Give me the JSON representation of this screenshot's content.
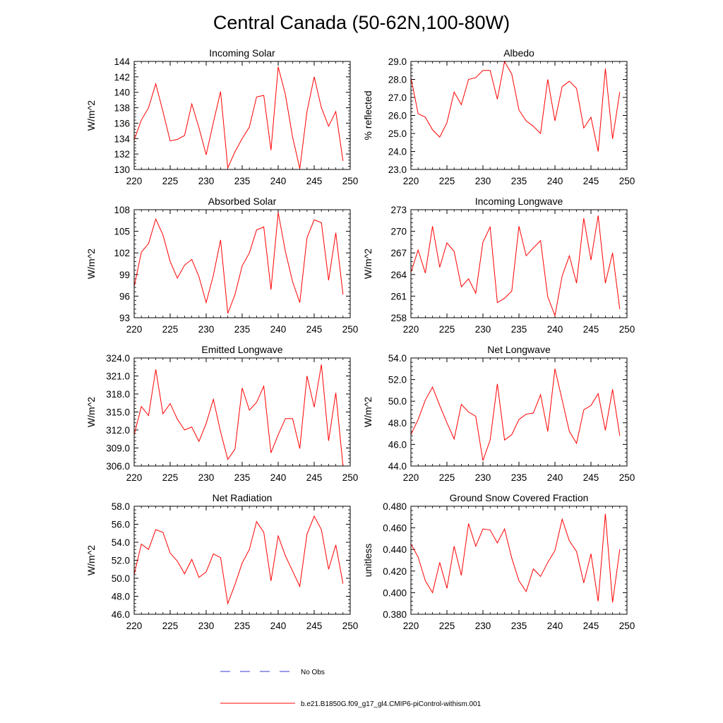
{
  "title": "Central Canada (50-62N,100-80W)",
  "colors": {
    "model_line": "#ff0000",
    "obs_line": "#3a3ad6",
    "axis": "#000000"
  },
  "legend": {
    "obs_label": "No Obs",
    "model_label": "b.e21.B1850G.f09_g17_gl4.CMIP6-piControl-withism.001"
  },
  "chart_data": [
    {
      "type": "line",
      "title": "Incoming Solar",
      "ylabel": "W/m^2",
      "xlabel": "",
      "xlim": [
        220,
        250
      ],
      "ylim": [
        130,
        144
      ],
      "xticks": [
        220,
        225,
        230,
        235,
        240,
        245,
        250
      ],
      "xtick_labels": [
        "220",
        "225",
        "230",
        "235",
        "240",
        "245",
        "250"
      ],
      "yticks": [
        130,
        132,
        134,
        136,
        138,
        140,
        142,
        144
      ],
      "ytick_labels": [
        "130",
        "132",
        "134",
        "136",
        "138",
        "140",
        "142",
        "144"
      ],
      "x": [
        220,
        221,
        222,
        223,
        224,
        225,
        226,
        227,
        228,
        229,
        230,
        231,
        232,
        233,
        234,
        235,
        236,
        237,
        238,
        239,
        240,
        241,
        242,
        243,
        244,
        245,
        246,
        247,
        248,
        249
      ],
      "series": [
        {
          "values": [
            133.8,
            136.4,
            138.0,
            141.1,
            137.5,
            133.7,
            133.9,
            134.4,
            138.5,
            135.4,
            131.9,
            136.1,
            140.1,
            130.2,
            132.3,
            134.0,
            135.5,
            139.4,
            139.6,
            132.5,
            143.3,
            139.7,
            134.2,
            130.1,
            137.5,
            142.0,
            138.0,
            135.6,
            137.5,
            131.1
          ]
        }
      ]
    },
    {
      "type": "line",
      "title": "Albedo",
      "ylabel": "% reflected",
      "xlabel": "",
      "xlim": [
        220,
        250
      ],
      "ylim": [
        23,
        29
      ],
      "xticks": [
        220,
        225,
        230,
        235,
        240,
        245,
        250
      ],
      "xtick_labels": [
        "220",
        "225",
        "230",
        "235",
        "240",
        "245",
        "250"
      ],
      "yticks": [
        23,
        24,
        25,
        26,
        27,
        28,
        29
      ],
      "ytick_labels": [
        "23.0",
        "24.0",
        "25.0",
        "26.0",
        "27.0",
        "28.0",
        "29.0"
      ],
      "x": [
        220,
        221,
        222,
        223,
        224,
        225,
        226,
        227,
        228,
        229,
        230,
        231,
        232,
        233,
        234,
        235,
        236,
        237,
        238,
        239,
        240,
        241,
        242,
        243,
        244,
        245,
        246,
        247,
        248,
        249
      ],
      "series": [
        {
          "values": [
            28.1,
            26.1,
            25.9,
            25.2,
            24.8,
            25.6,
            27.3,
            26.6,
            28.0,
            28.1,
            28.5,
            28.5,
            26.9,
            29.0,
            28.3,
            26.3,
            25.7,
            25.4,
            25.0,
            28.0,
            25.7,
            27.6,
            27.9,
            27.5,
            25.3,
            25.9,
            24.0,
            28.6,
            24.7,
            27.3
          ]
        }
      ]
    },
    {
      "type": "line",
      "title": "Absorbed Solar",
      "ylabel": "W/m^2",
      "xlabel": "",
      "xlim": [
        220,
        250
      ],
      "ylim": [
        93,
        108
      ],
      "xticks": [
        220,
        225,
        230,
        235,
        240,
        245,
        250
      ],
      "xtick_labels": [
        "220",
        "225",
        "230",
        "235",
        "240",
        "245",
        "250"
      ],
      "yticks": [
        93,
        96,
        99,
        102,
        105,
        108
      ],
      "ytick_labels": [
        "93",
        "96",
        "99",
        "102",
        "105",
        "108"
      ],
      "x": [
        220,
        221,
        222,
        223,
        224,
        225,
        226,
        227,
        228,
        229,
        230,
        231,
        232,
        233,
        234,
        235,
        236,
        237,
        238,
        239,
        240,
        241,
        242,
        243,
        244,
        245,
        246,
        247,
        248,
        249
      ],
      "series": [
        {
          "values": [
            97.3,
            102.1,
            103.3,
            106.7,
            104.5,
            100.8,
            98.5,
            100.3,
            101.1,
            98.7,
            95.1,
            98.9,
            103.8,
            93.6,
            96.2,
            100.2,
            102.0,
            105.2,
            105.6,
            96.9,
            107.6,
            102.2,
            98.0,
            95.1,
            104.1,
            106.6,
            106.2,
            98.2,
            104.8,
            96.2
          ]
        }
      ]
    },
    {
      "type": "line",
      "title": "Incoming Longwave",
      "ylabel": "W/m^2",
      "xlabel": "",
      "xlim": [
        220,
        250
      ],
      "ylim": [
        258,
        273
      ],
      "xticks": [
        220,
        225,
        230,
        235,
        240,
        245,
        250
      ],
      "xtick_labels": [
        "220",
        "225",
        "230",
        "235",
        "240",
        "245",
        "250"
      ],
      "yticks": [
        258,
        261,
        264,
        267,
        270,
        273
      ],
      "ytick_labels": [
        "258",
        "261",
        "264",
        "267",
        "270",
        "273"
      ],
      "x": [
        220,
        221,
        222,
        223,
        224,
        225,
        226,
        227,
        228,
        229,
        230,
        231,
        232,
        233,
        234,
        235,
        236,
        237,
        238,
        239,
        240,
        241,
        242,
        243,
        244,
        245,
        246,
        247,
        248,
        249
      ],
      "series": [
        {
          "values": [
            264.3,
            267.4,
            264.2,
            270.7,
            265.0,
            268.4,
            267.2,
            262.3,
            263.4,
            261.4,
            268.5,
            270.6,
            260.1,
            260.7,
            261.7,
            270.7,
            266.6,
            267.7,
            268.7,
            260.9,
            258.3,
            263.8,
            266.6,
            262.8,
            271.8,
            266.0,
            272.2,
            262.8,
            267.0,
            259.2
          ]
        }
      ]
    },
    {
      "type": "line",
      "title": "Emitted Longwave",
      "ylabel": "W/m^2",
      "xlabel": "",
      "xlim": [
        220,
        250
      ],
      "ylim": [
        306,
        324
      ],
      "xticks": [
        220,
        225,
        230,
        235,
        240,
        245,
        250
      ],
      "xtick_labels": [
        "220",
        "225",
        "230",
        "235",
        "240",
        "245",
        "250"
      ],
      "yticks": [
        306,
        309,
        312,
        315,
        318,
        321,
        324
      ],
      "ytick_labels": [
        "306.0",
        "309.0",
        "312.0",
        "315.0",
        "318.0",
        "321.0",
        "324.0"
      ],
      "x": [
        220,
        221,
        222,
        223,
        224,
        225,
        226,
        227,
        228,
        229,
        230,
        231,
        232,
        233,
        234,
        235,
        236,
        237,
        238,
        239,
        240,
        241,
        242,
        243,
        244,
        245,
        246,
        247,
        248,
        249
      ],
      "series": [
        {
          "values": [
            311.2,
            315.9,
            314.4,
            322.1,
            314.7,
            316.4,
            313.8,
            312.0,
            312.5,
            310.1,
            313.1,
            317.1,
            311.7,
            307.1,
            308.8,
            319.0,
            315.3,
            316.6,
            319.3,
            308.2,
            311.2,
            313.9,
            313.9,
            308.9,
            321.0,
            315.8,
            322.9,
            310.2,
            318.2,
            306.0
          ]
        }
      ]
    },
    {
      "type": "line",
      "title": "Net Longwave",
      "ylabel": "W/m^2",
      "xlabel": "",
      "xlim": [
        220,
        250
      ],
      "ylim": [
        44,
        54
      ],
      "xticks": [
        220,
        225,
        230,
        235,
        240,
        245,
        250
      ],
      "xtick_labels": [
        "220",
        "225",
        "230",
        "235",
        "240",
        "245",
        "250"
      ],
      "yticks": [
        44,
        46,
        48,
        50,
        52,
        54
      ],
      "ytick_labels": [
        "44.0",
        "46.0",
        "48.0",
        "50.0",
        "52.0",
        "54.0"
      ],
      "x": [
        220,
        221,
        222,
        223,
        224,
        225,
        226,
        227,
        228,
        229,
        230,
        231,
        232,
        233,
        234,
        235,
        236,
        237,
        238,
        239,
        240,
        241,
        242,
        243,
        244,
        245,
        246,
        247,
        248,
        249
      ],
      "series": [
        {
          "values": [
            46.9,
            48.3,
            50.1,
            51.3,
            49.6,
            48.0,
            46.5,
            49.7,
            49.0,
            48.6,
            44.5,
            46.4,
            51.6,
            46.4,
            46.9,
            48.3,
            48.8,
            48.9,
            50.6,
            47.2,
            53.0,
            50.1,
            47.2,
            46.1,
            49.2,
            49.6,
            50.7,
            47.3,
            51.1,
            46.8
          ]
        }
      ]
    },
    {
      "type": "line",
      "title": "Net Radiation",
      "ylabel": "W/m^2",
      "xlabel": "",
      "xlim": [
        220,
        250
      ],
      "ylim": [
        46,
        58
      ],
      "xticks": [
        220,
        225,
        230,
        235,
        240,
        245,
        250
      ],
      "xtick_labels": [
        "220",
        "225",
        "230",
        "235",
        "240",
        "245",
        "250"
      ],
      "yticks": [
        46,
        48,
        50,
        52,
        54,
        56,
        58
      ],
      "ytick_labels": [
        "46.0",
        "48.0",
        "50.0",
        "52.0",
        "54.0",
        "56.0",
        "58.0"
      ],
      "x": [
        220,
        221,
        222,
        223,
        224,
        225,
        226,
        227,
        228,
        229,
        230,
        231,
        232,
        233,
        234,
        235,
        236,
        237,
        238,
        239,
        240,
        241,
        242,
        243,
        244,
        245,
        246,
        247,
        248,
        249
      ],
      "series": [
        {
          "values": [
            50.4,
            53.8,
            53.2,
            55.4,
            55.1,
            52.8,
            51.9,
            50.5,
            52.1,
            50.1,
            50.7,
            52.7,
            52.3,
            47.2,
            49.3,
            51.7,
            53.2,
            56.3,
            55.1,
            49.7,
            54.7,
            52.5,
            50.8,
            49.1,
            54.9,
            56.9,
            55.4,
            51.0,
            53.7,
            49.4
          ]
        }
      ]
    },
    {
      "type": "line",
      "title": "Ground Snow Covered Fraction",
      "ylabel": "unitless",
      "xlabel": "",
      "xlim": [
        220,
        250
      ],
      "ylim": [
        0.38,
        0.48
      ],
      "xticks": [
        220,
        225,
        230,
        235,
        240,
        245,
        250
      ],
      "xtick_labels": [
        "220",
        "225",
        "230",
        "235",
        "240",
        "245",
        "250"
      ],
      "yticks": [
        0.38,
        0.4,
        0.42,
        0.44,
        0.46,
        0.48
      ],
      "ytick_labels": [
        "0.380",
        "0.400",
        "0.420",
        "0.440",
        "0.460",
        "0.480"
      ],
      "x": [
        220,
        221,
        222,
        223,
        224,
        225,
        226,
        227,
        228,
        229,
        230,
        231,
        232,
        233,
        234,
        235,
        236,
        237,
        238,
        239,
        240,
        241,
        242,
        243,
        244,
        245,
        246,
        247,
        248,
        249
      ],
      "series": [
        {
          "values": [
            0.445,
            0.433,
            0.411,
            0.4,
            0.428,
            0.404,
            0.443,
            0.416,
            0.464,
            0.443,
            0.459,
            0.458,
            0.446,
            0.459,
            0.432,
            0.411,
            0.401,
            0.422,
            0.415,
            0.428,
            0.439,
            0.468,
            0.448,
            0.438,
            0.409,
            0.436,
            0.392,
            0.473,
            0.391,
            0.44
          ]
        }
      ]
    }
  ]
}
